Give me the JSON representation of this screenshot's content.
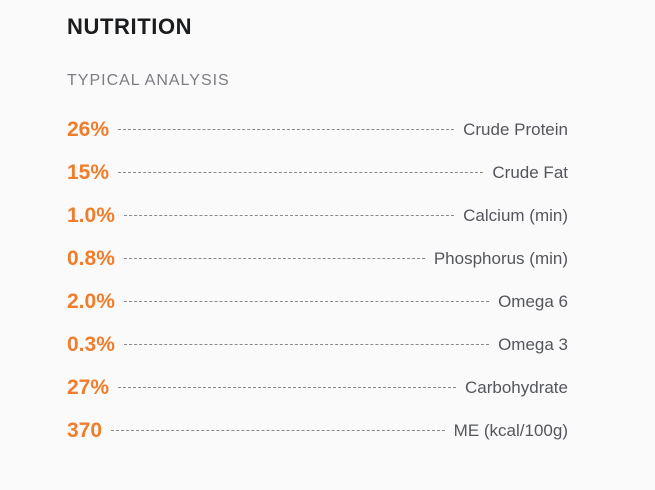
{
  "nutrition": {
    "title": "NUTRITION",
    "subtitle": "TYPICAL ANALYSIS",
    "rows": [
      {
        "value": "26%",
        "label": "Crude Protein"
      },
      {
        "value": "15%",
        "label": "Crude Fat"
      },
      {
        "value": "1.0%",
        "label": "Calcium (min)"
      },
      {
        "value": "0.8%",
        "label": "Phosphorus (min)"
      },
      {
        "value": "2.0%",
        "label": "Omega 6"
      },
      {
        "value": "0.3%",
        "label": "Omega 3"
      },
      {
        "value": "27%",
        "label": "Carbohydrate"
      },
      {
        "value": "370",
        "label": "ME (kcal/100g)"
      }
    ],
    "colors": {
      "accent_orange": "#ef7d2c",
      "heading": "#1b1c1e",
      "subtitle_gray": "#7b7d82",
      "label_gray": "#54565c",
      "leader_gray": "#8a8a8a",
      "background": "#fafafa"
    }
  }
}
